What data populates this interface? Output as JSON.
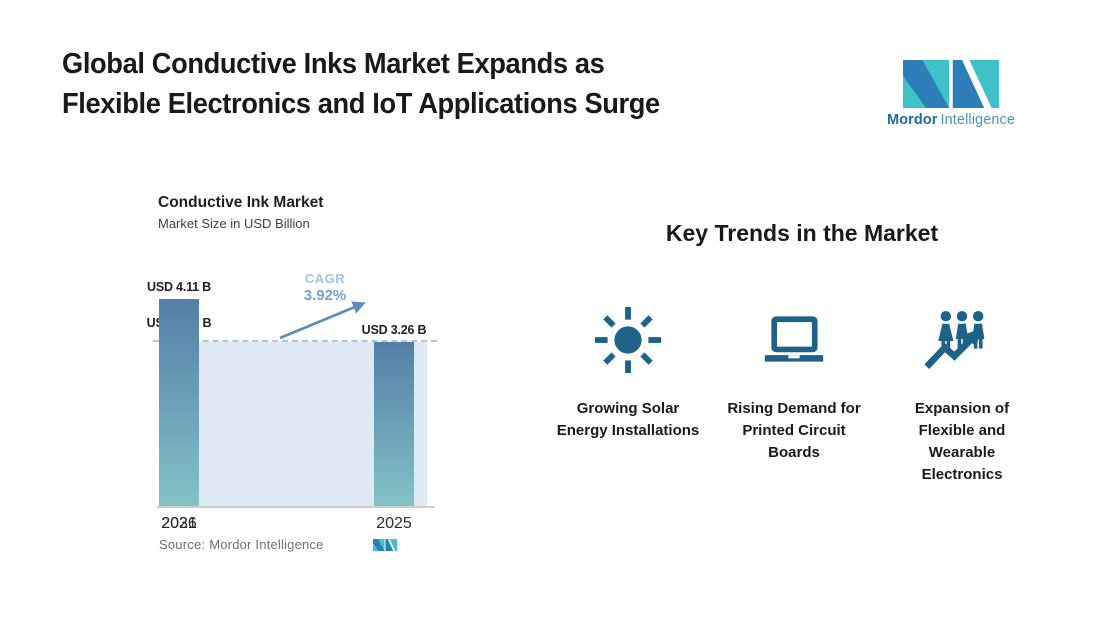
{
  "header": {
    "title_line1": "Global Conductive Inks Market Expands as",
    "title_line2": "Flexible Electronics and IoT Applications Surge"
  },
  "brand": {
    "name_bold": "Mordor",
    "name_light": "Intelligence"
  },
  "chart": {
    "title": "Conductive Ink Market",
    "subtitle": "Market Size in USD Billion",
    "cagr_label": "CAGR",
    "cagr_value": "3.92%",
    "source_prefix": "Source:",
    "source_name": "Mordor Intelligence"
  },
  "chart_data": {
    "type": "bar",
    "title": "Conductive Ink Market",
    "subtitle": "Market Size in USD Billion",
    "categories": [
      "2025",
      "2026",
      "2031"
    ],
    "values": [
      3.26,
      3.39,
      4.11
    ],
    "bar_labels": [
      "USD 3.26 B",
      "USD 3.39 B",
      "USD 4.11 B"
    ],
    "unit": "USD Billion",
    "cagr_percent": 3.92,
    "annotation": "CAGR 3.92%",
    "baseline_reference_value": 3.26,
    "ylim": [
      0,
      4.7
    ],
    "grid": false,
    "legend": false
  },
  "trends": {
    "heading": "Key Trends in the Market",
    "items": [
      {
        "icon": "sun-icon",
        "label": "Growing Solar Energy Installations"
      },
      {
        "icon": "laptop-icon",
        "label": "Rising Demand for Printed Circuit Boards"
      },
      {
        "icon": "people-growth-icon",
        "label": "Expansion of Flexible and Wearable Electronics"
      }
    ]
  },
  "colors": {
    "accent_teal": "#3fc1c9",
    "accent_blue": "#2e7fb8",
    "icon_blue": "#1e6189",
    "bar_gradient_top": "#557fa8",
    "bar_gradient_bottom": "#83c3c6",
    "plot_background": "#dfe9f3",
    "dashed_line": "#a9c7e0",
    "cagr_label_text": "#a2c2de",
    "cagr_value_text": "#74a2cd",
    "arrow_blue": "#5b8cba",
    "text_dark": "#1b1b1b",
    "text_gray": "#707070",
    "brand_dark_blue": "#1e6ba6",
    "brand_light_blue": "#4b96c8"
  }
}
